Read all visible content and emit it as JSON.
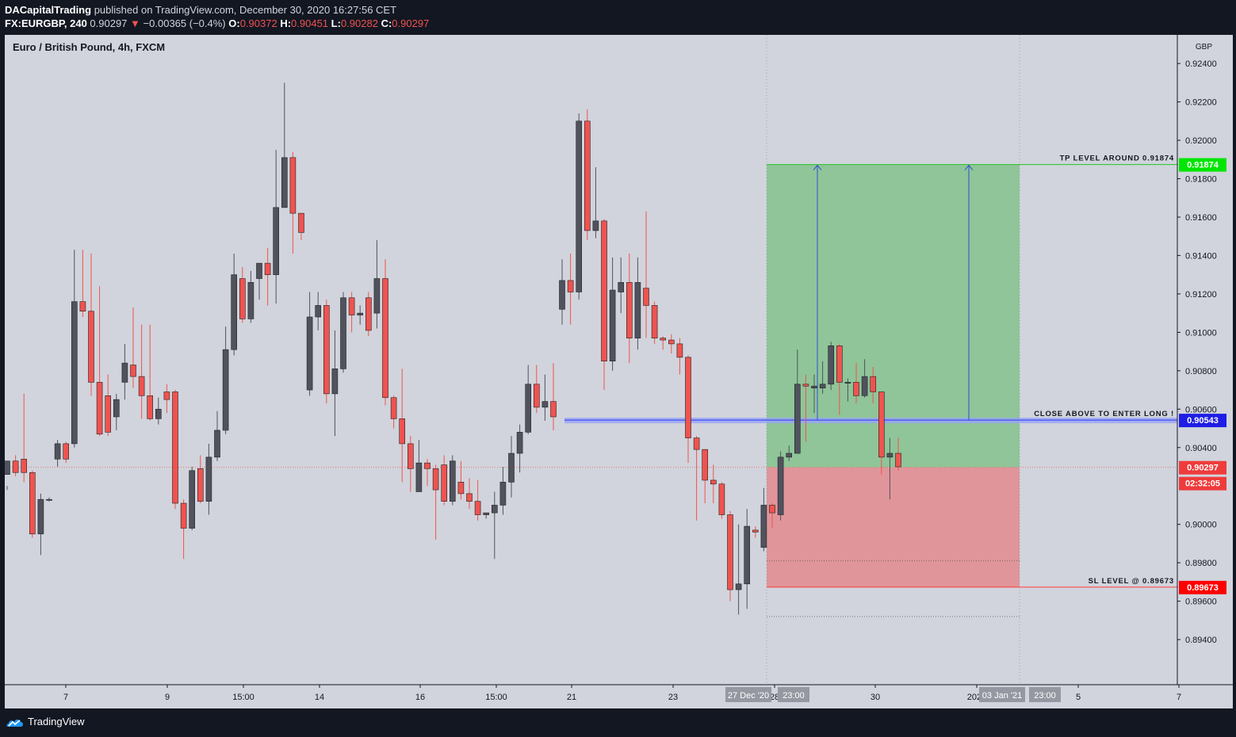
{
  "header": {
    "publisher": "DACapitalTrading",
    "published_text": "published on TradingView.com, December 30, 2020 16:27:56 CET",
    "symbol_line": "FX:EURGBP, 240",
    "last": "0.90297",
    "change": "−0.00365 (−0.4%)",
    "o_label": "O:",
    "o": "0.90372",
    "h_label": "H:",
    "h": "0.90451",
    "l_label": "L:",
    "l": "0.90282",
    "c_label": "C:",
    "c": "0.90297"
  },
  "chart_title": "Euro / British Pound, 4h, FXCM",
  "footer": {
    "brand": "TradingView"
  },
  "colors": {
    "up_body": "#50535e",
    "down_body": "#ef5350",
    "profit_zone": "#8fc598",
    "loss_zone": "#e0959a",
    "entry_line": "#3d4ff2",
    "tp_label": "#00e600",
    "sl_label": "#ff0000"
  },
  "chart_data": {
    "type": "candlestick",
    "currency": "GBP",
    "y_ticks": [
      "0.92400",
      "0.92200",
      "0.92000",
      "0.91800",
      "0.91600",
      "0.91400",
      "0.91200",
      "0.91000",
      "0.90800",
      "0.90600",
      "0.90400",
      "0.90000",
      "0.89800",
      "0.89600",
      "0.89400"
    ],
    "x_ticks": [
      "7",
      "9",
      "15:00",
      "14",
      "16",
      "15:00",
      "21",
      "23",
      "28",
      "30",
      "2021",
      "5",
      "7"
    ],
    "x_highlight_labels": [
      "27 Dec '20",
      "23:00",
      "03 Jan '21",
      "23:00"
    ],
    "ylim": [
      0.8926,
      0.9245
    ],
    "levels": {
      "tp": {
        "value": 0.91874,
        "label": "0.91874",
        "text": "TP LEVEL AROUND 0.91874"
      },
      "entry": {
        "value": 0.90543,
        "label": "0.90543",
        "text": "CLOSE ABOVE TO ENTER LONG !"
      },
      "last": {
        "value": 0.90297,
        "label": "0.90297",
        "countdown": "02:32:05"
      },
      "sl": {
        "value": 0.89673,
        "label": "0.89673",
        "text": "SL LEVEL @ 0.89673"
      }
    },
    "candles": [
      [
        0.9026,
        0.9033,
        0.902,
        0.9018
      ],
      [
        0.9033,
        0.9027,
        0.9036,
        0.9025
      ],
      [
        0.9034,
        0.9027,
        0.9068,
        0.9022
      ],
      [
        0.9027,
        0.8995,
        0.9028,
        0.8993
      ],
      [
        0.8995,
        0.9013,
        0.9016,
        0.8984
      ],
      [
        0.9013,
        0.9013,
        0.9014,
        0.9012
      ],
      [
        0.9034,
        0.9042,
        0.9044,
        0.903
      ],
      [
        0.9042,
        0.9034,
        0.9043,
        0.9032
      ],
      [
        0.9042,
        0.9116,
        0.9143,
        0.904
      ],
      [
        0.9116,
        0.9111,
        0.9143,
        0.9108
      ],
      [
        0.9111,
        0.9074,
        0.9141,
        0.9067
      ],
      [
        0.9074,
        0.9047,
        0.9124,
        0.9046
      ],
      [
        0.9067,
        0.9048,
        0.9078,
        0.9046
      ],
      [
        0.9056,
        0.9065,
        0.9068,
        0.9049
      ],
      [
        0.9074,
        0.9084,
        0.9094,
        0.9065
      ],
      [
        0.9083,
        0.9077,
        0.9113,
        0.9071
      ],
      [
        0.9077,
        0.9067,
        0.9104,
        0.9055
      ],
      [
        0.9067,
        0.9055,
        0.9104,
        0.9054
      ],
      [
        0.9055,
        0.906,
        0.9066,
        0.9052
      ],
      [
        0.9069,
        0.9065,
        0.9073,
        0.9058
      ],
      [
        0.9069,
        0.9011,
        0.907,
        0.9008
      ],
      [
        0.9011,
        0.8998,
        0.9013,
        0.8982
      ],
      [
        0.8998,
        0.9028,
        0.903,
        0.8997
      ],
      [
        0.9029,
        0.9012,
        0.9036,
        0.9011
      ],
      [
        0.9012,
        0.9035,
        0.9042,
        0.9005
      ],
      [
        0.9035,
        0.9049,
        0.9059,
        0.9033
      ],
      [
        0.9049,
        0.9091,
        0.9103,
        0.9047
      ],
      [
        0.9091,
        0.913,
        0.9141,
        0.9088
      ],
      [
        0.9128,
        0.9107,
        0.9134,
        0.9105
      ],
      [
        0.9107,
        0.9126,
        0.9132,
        0.9105
      ],
      [
        0.9128,
        0.9136,
        0.9136,
        0.9117
      ],
      [
        0.9136,
        0.913,
        0.9144,
        0.9114
      ],
      [
        0.913,
        0.9165,
        0.9195,
        0.9115
      ],
      [
        0.9165,
        0.9191,
        0.923,
        0.9167
      ],
      [
        0.9191,
        0.9162,
        0.9194,
        0.9141
      ],
      [
        0.9162,
        0.9152,
        0.9157,
        0.9148
      ],
      [
        0.907,
        0.9108,
        0.9121,
        0.9067
      ],
      [
        0.9108,
        0.9114,
        0.9121,
        0.9101
      ],
      [
        0.9114,
        0.9068,
        0.9117,
        0.9063
      ],
      [
        0.9068,
        0.9081,
        0.9101,
        0.9046
      ],
      [
        0.9081,
        0.9118,
        0.9121,
        0.9079
      ],
      [
        0.9118,
        0.9109,
        0.9121,
        0.91
      ],
      [
        0.9109,
        0.911,
        0.9114,
        0.9104
      ],
      [
        0.9118,
        0.9101,
        0.9121,
        0.9098
      ],
      [
        0.911,
        0.9128,
        0.9148,
        0.9102
      ],
      [
        0.9128,
        0.9066,
        0.9138,
        0.9062
      ],
      [
        0.9066,
        0.9055,
        0.9067,
        0.905
      ],
      [
        0.9055,
        0.9042,
        0.9081,
        0.9022
      ],
      [
        0.9042,
        0.9029,
        0.9046,
        0.9017
      ],
      [
        0.9017,
        0.9032,
        0.9044,
        0.9026
      ],
      [
        0.9032,
        0.9029,
        0.9034,
        0.902
      ],
      [
        0.9029,
        0.9018,
        0.9031,
        0.8992
      ],
      [
        0.9031,
        0.9012,
        0.9036,
        0.901
      ],
      [
        0.9012,
        0.9033,
        0.9036,
        0.901
      ],
      [
        0.9022,
        0.9016,
        0.9033,
        0.9013
      ],
      [
        0.9016,
        0.9012,
        0.9024,
        0.9008
      ],
      [
        0.9012,
        0.9005,
        0.9023,
        0.9002
      ],
      [
        0.9005,
        0.9006,
        0.9006,
        0.9003
      ],
      [
        0.9006,
        0.901,
        0.9017,
        0.8982
      ],
      [
        0.901,
        0.9022,
        0.903,
        0.9005
      ],
      [
        0.9022,
        0.9037,
        0.9046,
        0.9014
      ],
      [
        0.9037,
        0.9048,
        0.9052,
        0.9027
      ],
      [
        0.9048,
        0.9073,
        0.9083,
        0.9047
      ],
      [
        0.9073,
        0.9061,
        0.9083,
        0.9058
      ],
      [
        0.9061,
        0.9064,
        0.9078,
        0.9054
      ],
      [
        0.9064,
        0.9056,
        0.9084,
        0.9049
      ],
      [
        0.9112,
        0.9127,
        0.9138,
        0.9104
      ],
      [
        0.9127,
        0.9121,
        0.9141,
        0.9104
      ],
      [
        0.9121,
        0.921,
        0.9214,
        0.9117
      ],
      [
        0.921,
        0.9153,
        0.9216,
        0.9148
      ],
      [
        0.9153,
        0.9158,
        0.9186,
        0.9149
      ],
      [
        0.9158,
        0.9085,
        0.9159,
        0.907
      ],
      [
        0.9085,
        0.9122,
        0.9139,
        0.908
      ],
      [
        0.9121,
        0.9126,
        0.9139,
        0.911
      ],
      [
        0.9126,
        0.9097,
        0.9141,
        0.9084
      ],
      [
        0.9097,
        0.9126,
        0.9139,
        0.9091
      ],
      [
        0.9123,
        0.9114,
        0.9163,
        0.9097
      ],
      [
        0.9114,
        0.9097,
        0.9116,
        0.9094
      ],
      [
        0.9097,
        0.9096,
        0.9098,
        0.9091
      ],
      [
        0.9096,
        0.9094,
        0.9099,
        0.9089
      ],
      [
        0.9094,
        0.9087,
        0.9097,
        0.9078
      ],
      [
        0.9087,
        0.9045,
        0.9088,
        0.9032
      ],
      [
        0.9045,
        0.9039,
        0.9046,
        0.9002
      ],
      [
        0.9039,
        0.9023,
        0.9038,
        0.9011
      ],
      [
        0.9023,
        0.9021,
        0.9031,
        0.9011
      ],
      [
        0.9021,
        0.9005,
        0.9022,
        0.9003
      ],
      [
        0.9005,
        0.8966,
        0.9007,
        0.896
      ],
      [
        0.8966,
        0.8969,
        0.9,
        0.8953
      ],
      [
        0.8969,
        0.8999,
        0.9008,
        0.8956
      ],
      [
        0.8997,
        0.8996,
        0.8999,
        0.8993
      ],
      [
        0.8988,
        0.901,
        0.9019,
        0.8986
      ],
      [
        0.901,
        0.9006,
        0.9011,
        0.8998
      ],
      [
        0.9005,
        0.9035,
        0.9038,
        0.9002
      ],
      [
        0.9035,
        0.9037,
        0.9041,
        0.9033
      ],
      [
        0.9037,
        0.9073,
        0.9091,
        0.9039
      ],
      [
        0.9073,
        0.9072,
        0.9078,
        0.9043
      ],
      [
        0.9071,
        0.9072,
        0.9078,
        0.9058
      ],
      [
        0.9071,
        0.9073,
        0.9085,
        0.9068
      ],
      [
        0.9073,
        0.9093,
        0.9095,
        0.907
      ],
      [
        0.9093,
        0.9074,
        0.9094,
        0.9057
      ],
      [
        0.9074,
        0.9074,
        0.9076,
        0.9064
      ],
      [
        0.9074,
        0.9067,
        0.9084,
        0.9063
      ],
      [
        0.9067,
        0.9077,
        0.9086,
        0.9066
      ],
      [
        0.9077,
        0.9069,
        0.9082,
        0.9063
      ],
      [
        0.9069,
        0.9035,
        0.9069,
        0.9026
      ],
      [
        0.9035,
        0.9037,
        0.9045,
        0.9013
      ],
      [
        0.9037,
        0.903,
        0.9045,
        0.9028
      ]
    ]
  }
}
